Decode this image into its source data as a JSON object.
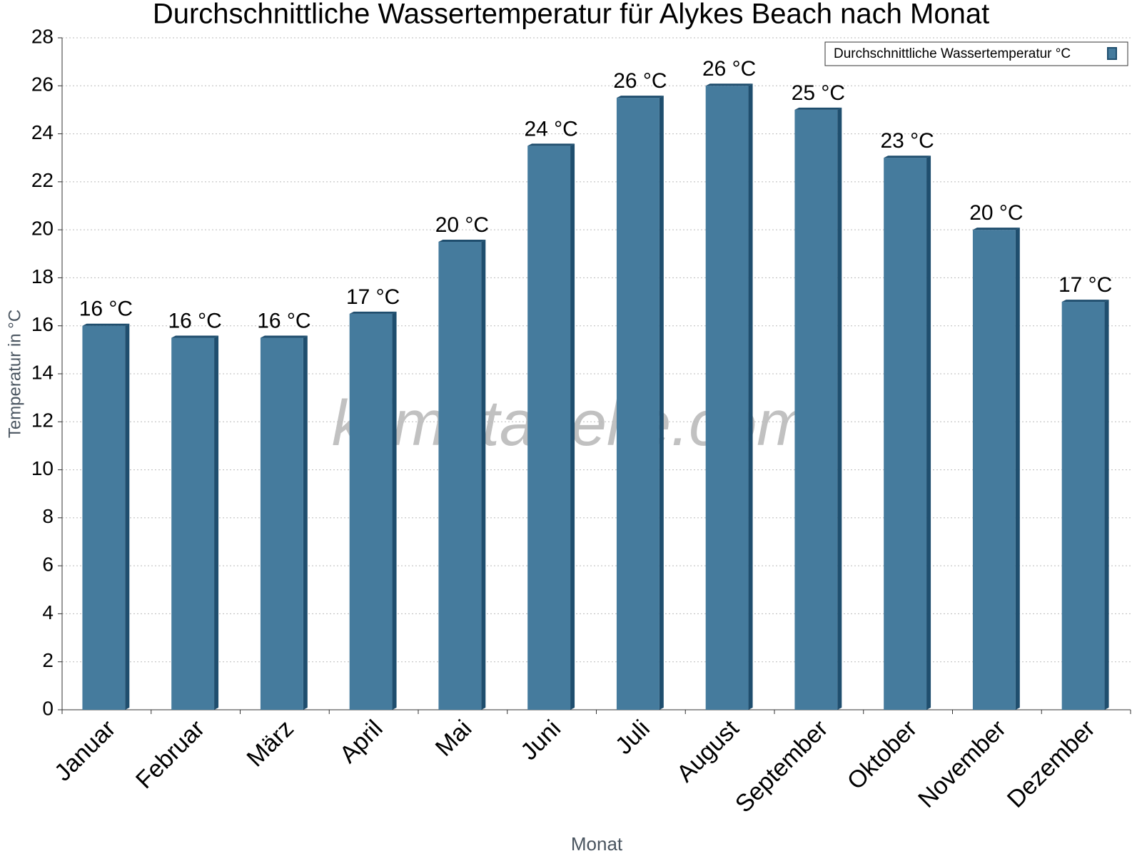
{
  "chart_data": {
    "type": "bar",
    "title": "Durchschnittliche Wassertemperatur für Alykes Beach nach Monat",
    "xlabel": "Monat",
    "ylabel": "Temperatur in °C",
    "watermark": "klimatabelle.com",
    "categories": [
      "Januar",
      "Februar",
      "März",
      "April",
      "Mai",
      "Juni",
      "Juli",
      "August",
      "September",
      "Oktober",
      "November",
      "Dezember"
    ],
    "series": [
      {
        "name": "Durchschnittliche Wassertemperatur °C",
        "color": "#457b9d",
        "values": [
          16,
          15.5,
          15.5,
          16.5,
          19.5,
          23.5,
          25.5,
          26,
          25,
          23,
          20,
          17
        ],
        "value_labels": [
          "16 °C",
          "16 °C",
          "16 °C",
          "17 °C",
          "20 °C",
          "24 °C",
          "26 °C",
          "26 °C",
          "25 °C",
          "23 °C",
          "20 °C",
          "17 °C"
        ]
      }
    ],
    "ylim": [
      0,
      28
    ],
    "yticks": [
      0,
      2,
      4,
      6,
      8,
      10,
      12,
      14,
      16,
      18,
      20,
      22,
      24,
      26,
      28
    ],
    "grid": true,
    "legend": "top-right"
  }
}
